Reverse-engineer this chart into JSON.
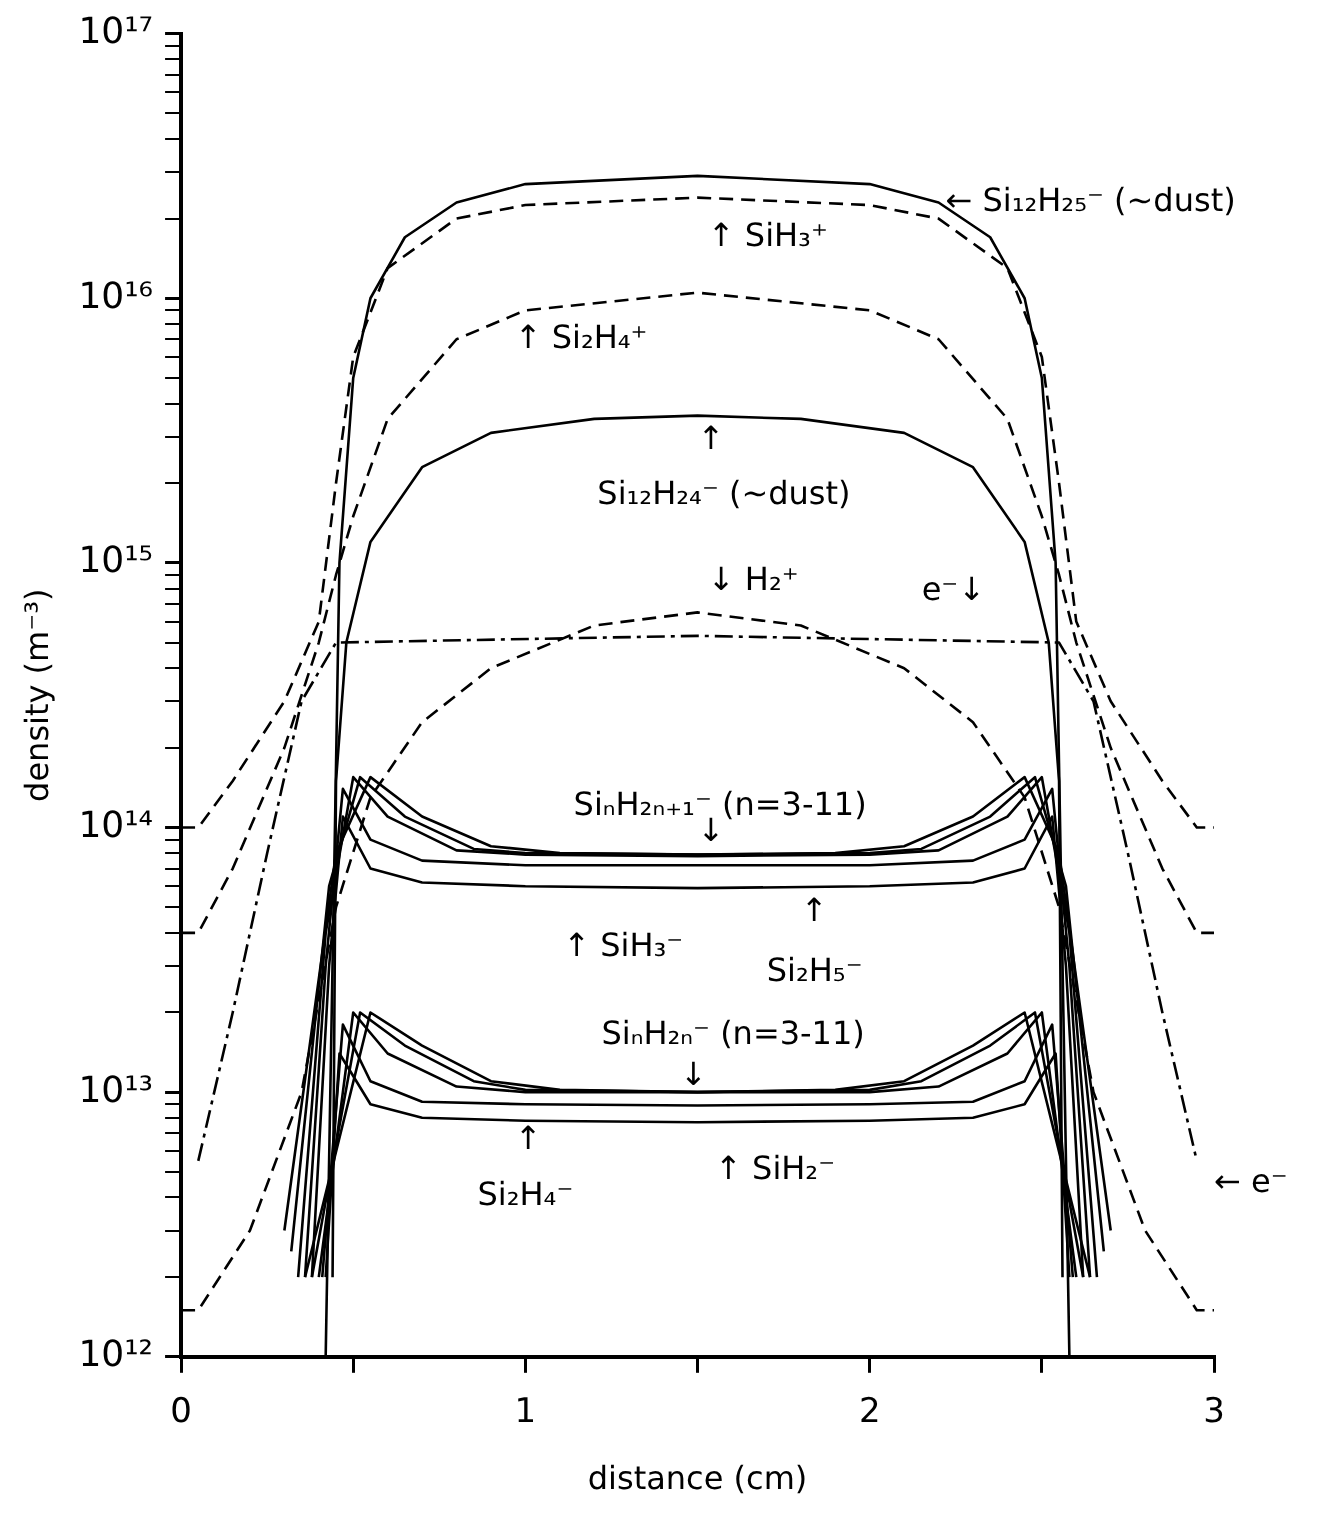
{
  "chart_data": {
    "type": "line",
    "xlabel": "distance (cm)",
    "ylabel": "density (m⁻³)",
    "log": "y",
    "xlim": [
      0,
      3
    ],
    "xticks": [
      0,
      {
        "value": 0.5,
        "label": null
      },
      1,
      {
        "value": 1.5,
        "label": null
      },
      2,
      {
        "value": 2.5,
        "label": null
      },
      3
    ],
    "ylim": [
      1000000000000.0,
      1e+17
    ],
    "yticks": [
      {
        "value": 1000000000000.0,
        "label": "10¹²"
      },
      {
        "value": 2000000000000.0,
        "label": null
      },
      {
        "value": 3000000000000.0,
        "label": null
      },
      {
        "value": 4000000000000.0,
        "label": null
      },
      {
        "value": 5000000000000.0,
        "label": null
      },
      {
        "value": 6000000000000.0,
        "label": null
      },
      {
        "value": 7000000000000.0,
        "label": null
      },
      {
        "value": 8000000000000.0,
        "label": null
      },
      {
        "value": 9000000000000.0,
        "label": null
      },
      {
        "value": 10000000000000.0,
        "label": "10¹³"
      },
      {
        "value": 20000000000000.0,
        "label": null
      },
      {
        "value": 30000000000000.0,
        "label": null
      },
      {
        "value": 40000000000000.0,
        "label": null
      },
      {
        "value": 50000000000000.0,
        "label": null
      },
      {
        "value": 60000000000000.0,
        "label": null
      },
      {
        "value": 70000000000000.0,
        "label": null
      },
      {
        "value": 80000000000000.0,
        "label": null
      },
      {
        "value": 90000000000000.0,
        "label": null
      },
      {
        "value": 100000000000000.0,
        "label": "10¹⁴"
      },
      {
        "value": 200000000000000.0,
        "label": null
      },
      {
        "value": 300000000000000.0,
        "label": null
      },
      {
        "value": 400000000000000.0,
        "label": null
      },
      {
        "value": 500000000000000.0,
        "label": null
      },
      {
        "value": 600000000000000.0,
        "label": null
      },
      {
        "value": 700000000000000.0,
        "label": null
      },
      {
        "value": 800000000000000.0,
        "label": null
      },
      {
        "value": 900000000000000.0,
        "label": null
      },
      {
        "value": 1000000000000000.0,
        "label": "10¹⁵"
      },
      {
        "value": 2000000000000000.0,
        "label": null
      },
      {
        "value": 3000000000000000.0,
        "label": null
      },
      {
        "value": 4000000000000000.0,
        "label": null
      },
      {
        "value": 5000000000000000.0,
        "label": null
      },
      {
        "value": 6000000000000000.0,
        "label": null
      },
      {
        "value": 7000000000000000.0,
        "label": null
      },
      {
        "value": 8000000000000000.0,
        "label": null
      },
      {
        "value": 9000000000000000.0,
        "label": null
      },
      {
        "value": 1e+16,
        "label": "10¹⁶"
      },
      {
        "value": 2e+16,
        "label": null
      },
      {
        "value": 3e+16,
        "label": null
      },
      {
        "value": 4e+16,
        "label": null
      },
      {
        "value": 5e+16,
        "label": null
      },
      {
        "value": 6e+16,
        "label": null
      },
      {
        "value": 7e+16,
        "label": null
      },
      {
        "value": 8e+16,
        "label": null
      },
      {
        "value": 9e+16,
        "label": null
      },
      {
        "value": 1e+17,
        "label": "10¹⁷"
      }
    ],
    "grid": false,
    "legend": false,
    "marker": "none",
    "series": [
      {
        "color": "#000000",
        "line_style": "solid",
        "x": [
          0.42,
          0.45,
          0.46,
          0.5,
          0.55,
          0.65,
          0.8,
          1.0,
          1.5,
          2.0,
          2.2,
          2.35,
          2.45,
          2.5,
          2.54,
          2.55,
          2.58
        ],
        "values": [
          1000000000000.0,
          170000000000000.0,
          1000000000000000.0,
          5000000000000000.0,
          1e+16,
          1.7e+16,
          2.3e+16,
          2.7e+16,
          2.9e+16,
          2.7e+16,
          2.3e+16,
          1.7e+16,
          1e+16,
          5000000000000000.0,
          1000000000000000.0,
          170000000000000.0,
          1000000000000.0
        ]
      },
      {
        "color": "#000000",
        "line_style": "dashed",
        "x": [
          0,
          0.05,
          0.15,
          0.3,
          0.4,
          0.45,
          0.5,
          0.6,
          0.8,
          1.0,
          1.5,
          2.0,
          2.2,
          2.4,
          2.5,
          2.55,
          2.6,
          2.7,
          2.85,
          2.95,
          3.0
        ],
        "values": [
          100000000000000.0,
          100000000000000.0,
          150000000000000.0,
          300000000000000.0,
          600000000000000.0,
          2000000000000000.0,
          6000000000000000.0,
          1.3e+16,
          2e+16,
          2.25e+16,
          2.4e+16,
          2.25e+16,
          2e+16,
          1.3e+16,
          6000000000000000.0,
          2000000000000000.0,
          600000000000000.0,
          300000000000000.0,
          150000000000000.0,
          100000000000000.0,
          100000000000000.0
        ]
      },
      {
        "color": "#000000",
        "line_style": "dashed",
        "x": [
          0,
          0.05,
          0.15,
          0.3,
          0.4,
          0.45,
          0.5,
          0.6,
          0.8,
          1.0,
          1.5,
          2.0,
          2.2,
          2.4,
          2.5,
          2.55,
          2.6,
          2.7,
          2.85,
          2.95,
          3.0
        ],
        "values": [
          40000000000000.0,
          40000000000000.0,
          70000000000000.0,
          200000000000000.0,
          500000000000000.0,
          900000000000000.0,
          1500000000000000.0,
          3500000000000000.0,
          7000000000000000.0,
          9000000000000000.0,
          1.05e+16,
          9000000000000000.0,
          7000000000000000.0,
          3500000000000000.0,
          1500000000000000.0,
          900000000000000.0,
          500000000000000.0,
          200000000000000.0,
          70000000000000.0,
          40000000000000.0,
          40000000000000.0
        ]
      },
      {
        "color": "#000000",
        "line_style": "solid",
        "x": [
          0.44,
          0.45,
          0.48,
          0.55,
          0.7,
          0.9,
          1.2,
          1.5,
          1.8,
          2.1,
          2.3,
          2.45,
          2.52,
          2.55,
          2.56
        ],
        "values": [
          2000000000000.0,
          150000000000000.0,
          500000000000000.0,
          1200000000000000.0,
          2300000000000000.0,
          3100000000000000.0,
          3500000000000000.0,
          3600000000000000.0,
          3500000000000000.0,
          3100000000000000.0,
          2300000000000000.0,
          1200000000000000.0,
          500000000000000.0,
          150000000000000.0,
          2000000000000.0
        ]
      },
      {
        "color": "#000000",
        "line_style": "dashed",
        "x": [
          0,
          0.05,
          0.2,
          0.35,
          0.45,
          0.55,
          0.7,
          0.9,
          1.2,
          1.5,
          1.8,
          2.1,
          2.3,
          2.45,
          2.55,
          2.65,
          2.8,
          2.95,
          3.0
        ],
        "values": [
          1500000000000.0,
          1500000000000.0,
          3000000000000.0,
          10000000000000.0,
          50000000000000.0,
          130000000000000.0,
          250000000000000.0,
          400000000000000.0,
          580000000000000.0,
          650000000000000.0,
          580000000000000.0,
          400000000000000.0,
          250000000000000.0,
          130000000000000.0,
          50000000000000.0,
          10000000000000.0,
          3000000000000.0,
          1500000000000.0,
          1500000000000.0
        ]
      },
      {
        "color": "#000000",
        "line_style": "dashdot",
        "x": [
          0.05,
          0.15,
          0.25,
          0.35,
          0.45,
          1.5,
          2.55,
          2.65,
          2.75,
          2.85,
          2.95
        ],
        "values": [
          5500000000000.0,
          20000000000000.0,
          80000000000000.0,
          300000000000000.0,
          500000000000000.0,
          530000000000000.0,
          500000000000000.0,
          300000000000000.0,
          80000000000000.0,
          20000000000000.0,
          5500000000000.0
        ]
      },
      {
        "color": "#000000",
        "line_style": "solid",
        "x": [
          0.38,
          0.43,
          0.47,
          0.55,
          0.7,
          1.0,
          1.5,
          2.0,
          2.3,
          2.45,
          2.53,
          2.57,
          2.62
        ],
        "values": [
          2000000000000.0,
          30000000000000.0,
          110000000000000.0,
          70000000000000.0,
          62000000000000.0,
          60000000000000.0,
          59000000000000.0,
          60000000000000.0,
          62000000000000.0,
          70000000000000.0,
          110000000000000.0,
          30000000000000.0,
          2000000000000.0
        ]
      },
      {
        "color": "#000000",
        "line_style": "solid",
        "x": [
          0.36,
          0.42,
          0.47,
          0.55,
          0.7,
          1.0,
          1.5,
          2.0,
          2.3,
          2.45,
          2.53,
          2.58,
          2.64
        ],
        "values": [
          2000000000000.0,
          30000000000000.0,
          140000000000000.0,
          90000000000000.0,
          75000000000000.0,
          72000000000000.0,
          72000000000000.0,
          72000000000000.0,
          75000000000000.0,
          90000000000000.0,
          140000000000000.0,
          30000000000000.0,
          2000000000000.0
        ]
      },
      {
        "color": "#000000",
        "line_style": "solid",
        "x": [
          0.34,
          0.42,
          0.5,
          0.6,
          0.8,
          1.0,
          1.5,
          2.0,
          2.2,
          2.4,
          2.5,
          2.58,
          2.66
        ],
        "values": [
          2000000000000.0,
          40000000000000.0,
          155000000000000.0,
          110000000000000.0,
          82000000000000.0,
          79000000000000.0,
          78000000000000.0,
          79000000000000.0,
          82000000000000.0,
          110000000000000.0,
          155000000000000.0,
          40000000000000.0,
          2000000000000.0
        ]
      },
      {
        "color": "#000000",
        "line_style": "solid",
        "x": [
          0.32,
          0.43,
          0.52,
          0.65,
          0.85,
          1.0,
          1.5,
          2.0,
          2.15,
          2.35,
          2.48,
          2.57,
          2.68
        ],
        "values": [
          2500000000000.0,
          60000000000000.0,
          155000000000000.0,
          110000000000000.0,
          83000000000000.0,
          80000000000000.0,
          79000000000000.0,
          80000000000000.0,
          83000000000000.0,
          110000000000000.0,
          155000000000000.0,
          60000000000000.0,
          2500000000000.0
        ]
      },
      {
        "color": "#000000",
        "line_style": "solid",
        "x": [
          0.3,
          0.45,
          0.55,
          0.7,
          0.9,
          1.1,
          1.5,
          1.9,
          2.1,
          2.3,
          2.45,
          2.55,
          2.7
        ],
        "values": [
          3000000000000.0,
          80000000000000.0,
          155000000000000.0,
          110000000000000.0,
          85000000000000.0,
          80000000000000.0,
          79000000000000.0,
          80000000000000.0,
          85000000000000.0,
          110000000000000.0,
          155000000000000.0,
          80000000000000.0,
          3000000000000.0
        ]
      },
      {
        "color": "#000000",
        "line_style": "solid",
        "x": [
          0.42,
          0.46,
          0.55,
          0.7,
          1.0,
          1.5,
          2.0,
          2.3,
          2.45,
          2.54,
          2.58
        ],
        "values": [
          2000000000000.0,
          14000000000000.0,
          9000000000000.0,
          8000000000000.0,
          7800000000000.0,
          7700000000000.0,
          7800000000000.0,
          8000000000000.0,
          9000000000000.0,
          14000000000000.0,
          2000000000000.0
        ]
      },
      {
        "color": "#000000",
        "line_style": "solid",
        "x": [
          0.41,
          0.47,
          0.55,
          0.7,
          1.0,
          1.5,
          2.0,
          2.3,
          2.45,
          2.53,
          2.59
        ],
        "values": [
          2000000000000.0,
          18000000000000.0,
          11000000000000.0,
          9200000000000.0,
          9000000000000.0,
          8900000000000.0,
          9000000000000.0,
          9200000000000.0,
          11000000000000.0,
          18000000000000.0,
          2000000000000.0
        ]
      },
      {
        "color": "#000000",
        "line_style": "solid",
        "x": [
          0.4,
          0.5,
          0.6,
          0.8,
          1.0,
          1.5,
          2.0,
          2.2,
          2.4,
          2.5,
          2.6
        ],
        "values": [
          2000000000000.0,
          20000000000000.0,
          14000000000000.0,
          10500000000000.0,
          10000000000000.0,
          10000000000000.0,
          10000000000000.0,
          10500000000000.0,
          14000000000000.0,
          20000000000000.0,
          2000000000000.0
        ]
      },
      {
        "color": "#000000",
        "line_style": "solid",
        "x": [
          0.38,
          0.52,
          0.65,
          0.85,
          1.0,
          1.5,
          2.0,
          2.15,
          2.35,
          2.48,
          2.62
        ],
        "values": [
          2000000000000.0,
          20000000000000.0,
          15000000000000.0,
          11000000000000.0,
          10200000000000.0,
          10000000000000.0,
          10200000000000.0,
          11000000000000.0,
          15000000000000.0,
          20000000000000.0,
          2000000000000.0
        ]
      },
      {
        "color": "#000000",
        "line_style": "solid",
        "x": [
          0.36,
          0.55,
          0.7,
          0.9,
          1.1,
          1.5,
          1.9,
          2.1,
          2.3,
          2.45,
          2.64
        ],
        "values": [
          2000000000000.0,
          20000000000000.0,
          15000000000000.0,
          11000000000000.0,
          10200000000000.0,
          10000000000000.0,
          10200000000000.0,
          11000000000000.0,
          15000000000000.0,
          20000000000000.0,
          2000000000000.0
        ]
      }
    ],
    "annotations": [
      "← Si₁₂H₂₅⁻ (~dust)",
      "↑ SiH₃⁺",
      "↑ Si₂H₄⁺",
      "↑",
      "Si₁₂H₂₄⁻ (~dust)",
      "↓ H₂⁺",
      "e⁻↓",
      "SiₙH₂ₙ₊₁⁻ (n=3-11)",
      "↓",
      "↑ SiH₃⁻",
      "↑",
      "Si₂H₅⁻",
      "SiₙH₂ₙ⁻ (n=3-11)",
      "↓",
      "↑",
      "Si₂H₄⁻",
      "↑ SiH₂⁻",
      "← e⁻"
    ]
  }
}
